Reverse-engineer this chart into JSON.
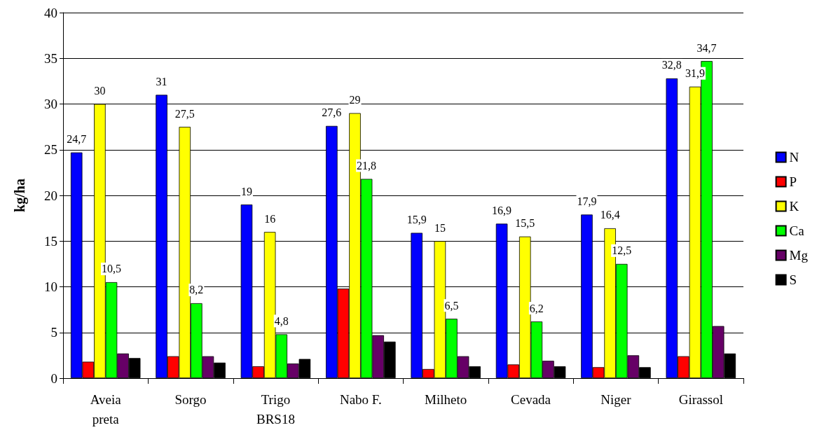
{
  "chart_data": {
    "type": "bar",
    "ylabel": "kg/ha",
    "categories": [
      "Aveia\npreta",
      "Sorgo",
      "Trigo\nBRS18",
      "Nabo F.",
      "Milheto",
      "Cevada",
      "Niger",
      "Girassol"
    ],
    "series": [
      {
        "name": "N",
        "color": "#0000ff",
        "values": [
          24.7,
          31,
          19,
          27.6,
          15.9,
          16.9,
          17.9,
          32.8
        ],
        "value_labels": [
          "24,7",
          "31",
          "19",
          "27,6",
          "15,9",
          "16,9",
          "17,9",
          "32,8"
        ]
      },
      {
        "name": "P",
        "color": "#ff0000",
        "values": [
          1.8,
          2.4,
          1.3,
          9.8,
          1.0,
          1.5,
          1.2,
          2.4
        ]
      },
      {
        "name": "K",
        "color": "#ffff00",
        "values": [
          30,
          27.5,
          16,
          29,
          15,
          15.5,
          16.4,
          31.9
        ],
        "value_labels": [
          "30",
          "27,5",
          "16",
          "29",
          "15",
          "15,5",
          "16,4",
          "31,9"
        ]
      },
      {
        "name": "Ca",
        "color": "#00ff00",
        "values": [
          10.5,
          8.2,
          4.8,
          21.8,
          6.5,
          6.2,
          12.5,
          34.7
        ],
        "value_labels": [
          "10,5",
          "8,2",
          "4,8",
          "21,8",
          "6,5",
          "6,2",
          "12,5",
          "34,7"
        ]
      },
      {
        "name": "Mg",
        "color": "#660066",
        "values": [
          2.7,
          2.4,
          1.6,
          4.7,
          2.4,
          1.9,
          2.5,
          5.7
        ]
      },
      {
        "name": "S",
        "color": "#000000",
        "values": [
          2.2,
          1.7,
          2.1,
          4.0,
          1.3,
          1.3,
          1.2,
          2.7
        ]
      }
    ],
    "ylim": [
      0,
      40
    ],
    "yticks": [
      0,
      5,
      10,
      15,
      20,
      25,
      30,
      35,
      40
    ],
    "grid": "y",
    "legend": "right"
  }
}
